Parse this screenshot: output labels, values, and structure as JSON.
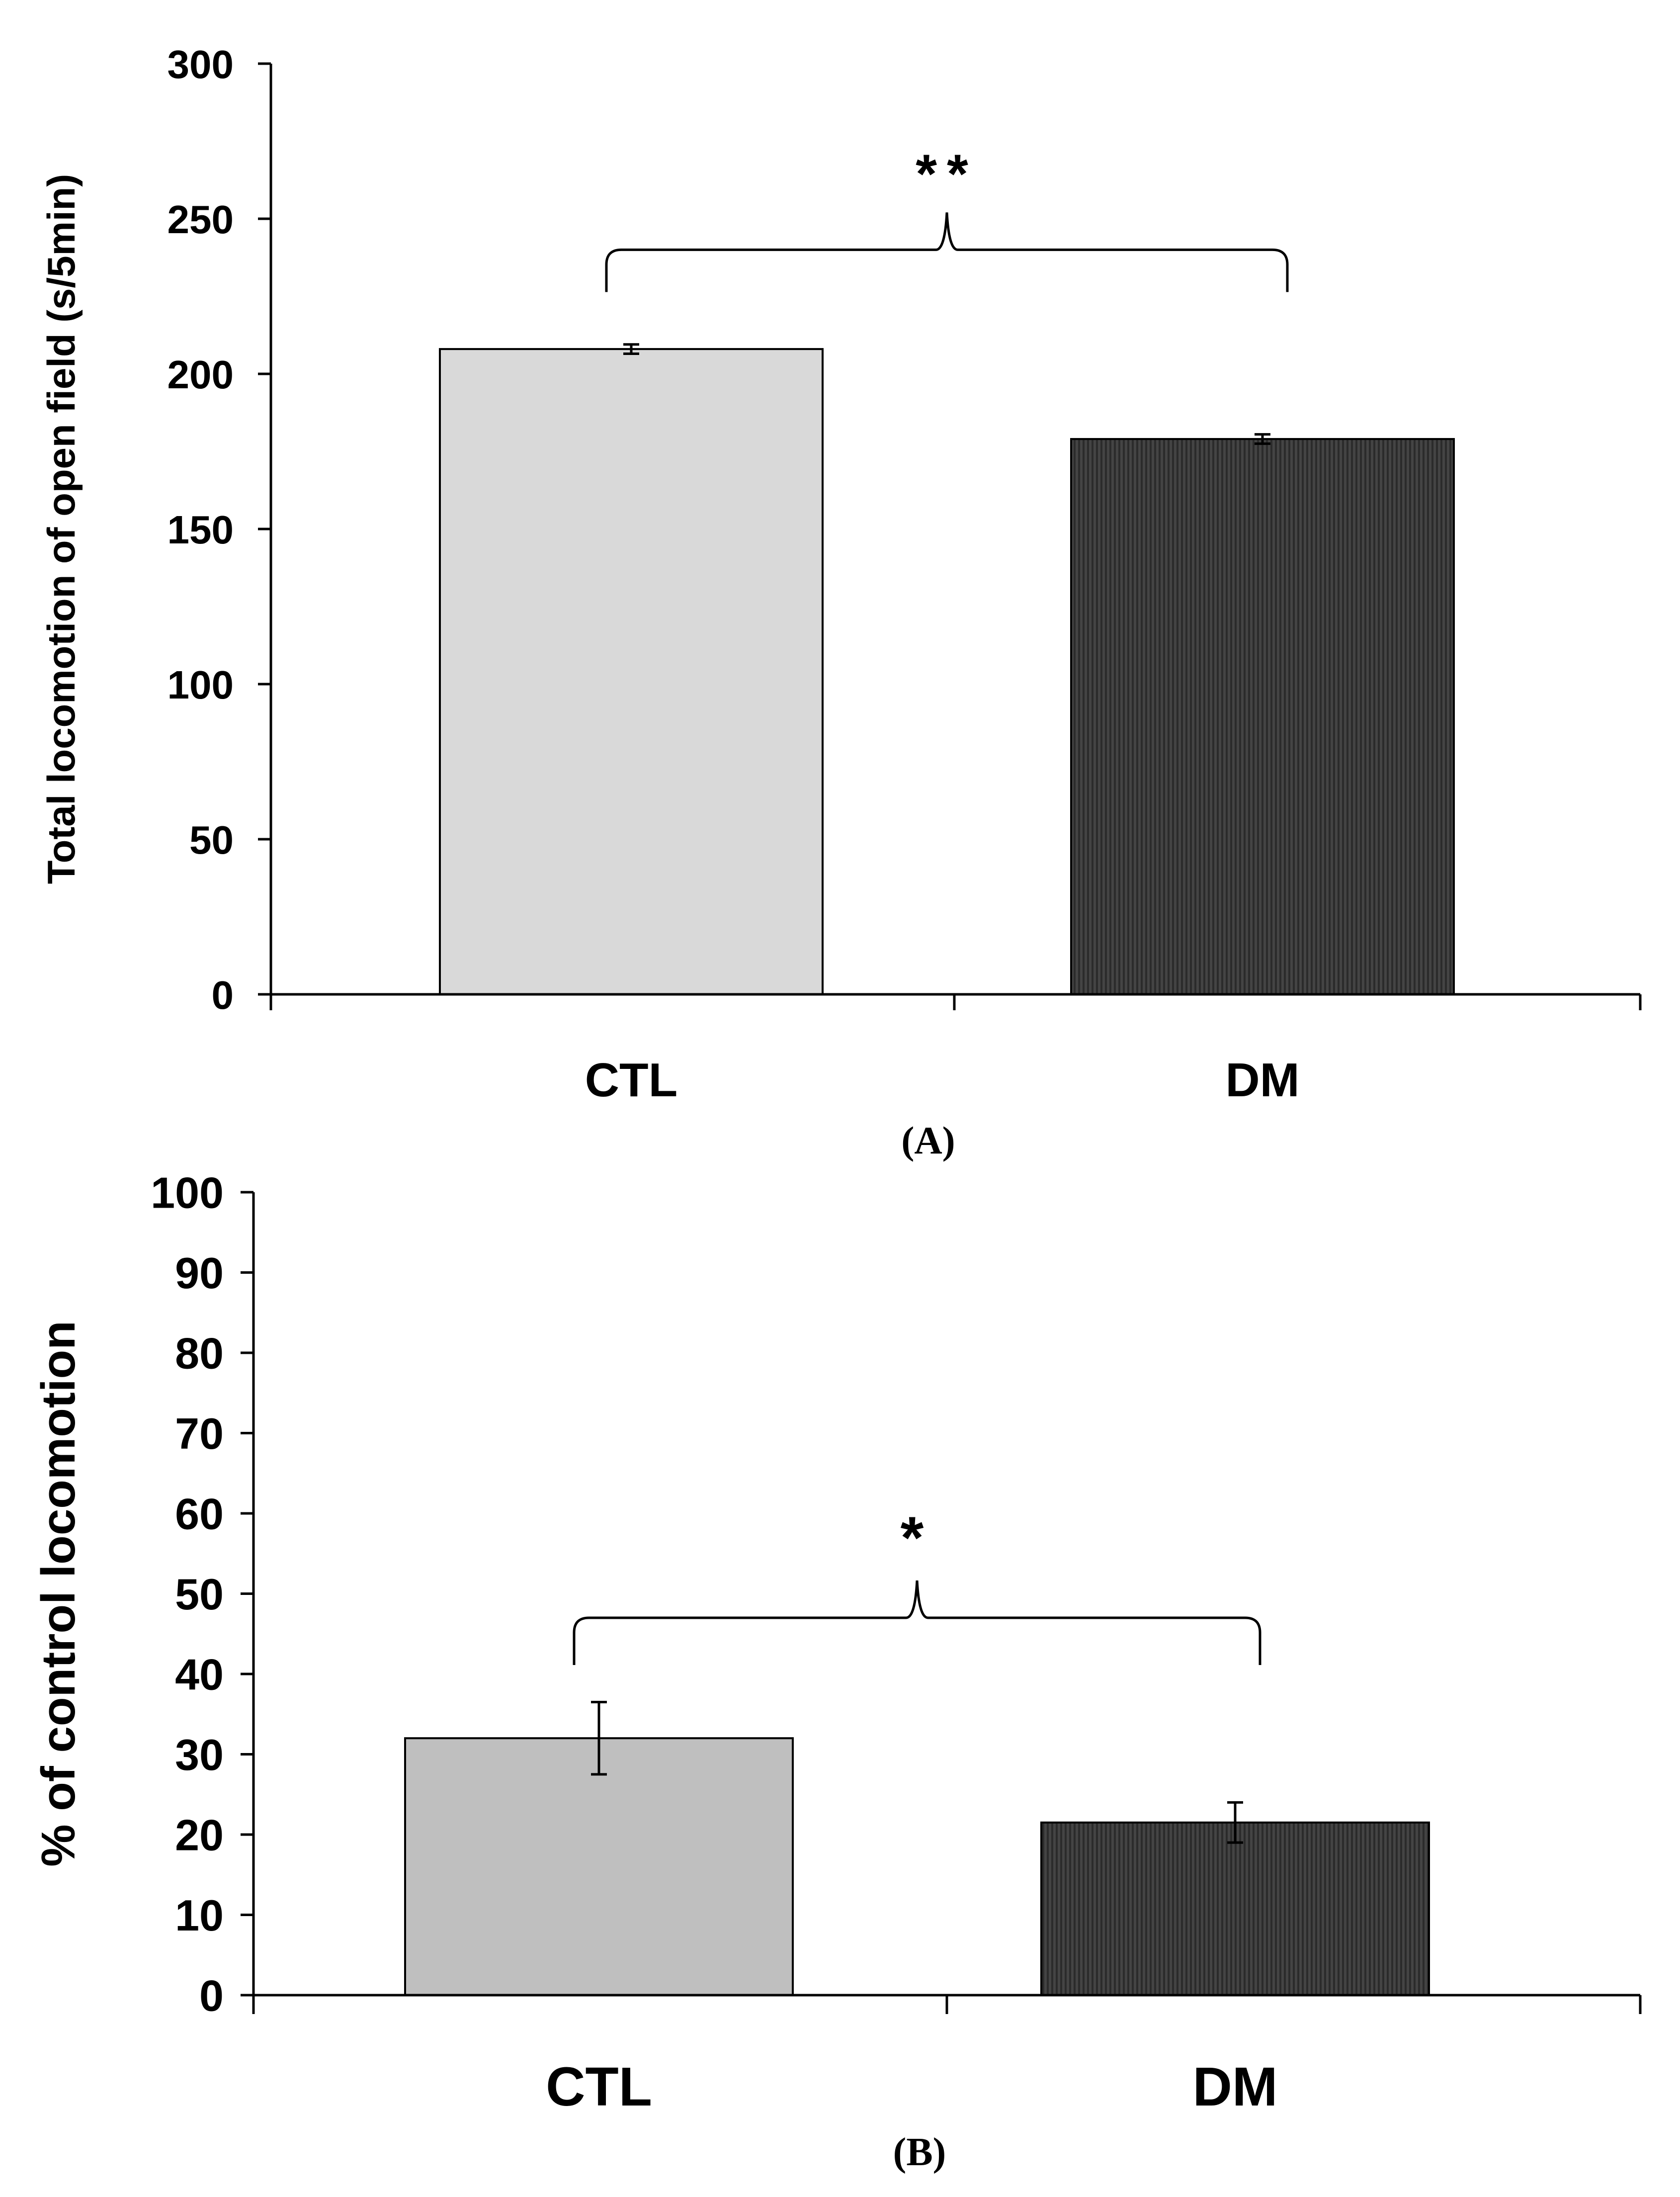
{
  "colors": {
    "axis": "#000000",
    "ctl_bar_A": "#d9d9d9",
    "ctl_bar_B": "#bfbfbf",
    "dm_bar": "#404040",
    "dm_stripe": "#2a2a2a",
    "background": "#ffffff"
  },
  "chart_data": [
    {
      "type": "bar",
      "panel_label": "(A)",
      "title": "",
      "xlabel": "",
      "ylabel": "Total locomotion of open field  (s/5min)",
      "categories": [
        "CTL",
        "DM"
      ],
      "values": [
        208,
        179
      ],
      "errors": [
        1.5,
        1.5
      ],
      "ylim": [
        0,
        300
      ],
      "yticks": [
        0,
        50,
        100,
        150,
        200,
        250,
        300
      ],
      "ytick_labels": [
        "0",
        "50",
        "100",
        "150",
        "200",
        "250",
        "300"
      ],
      "significance": {
        "label": "**",
        "between": [
          "CTL",
          "DM"
        ],
        "bracket_level": 240
      },
      "grid": false,
      "legend": "none"
    },
    {
      "type": "bar",
      "panel_label": "(B)",
      "title": "",
      "xlabel": "",
      "ylabel": "% of control locomotion",
      "categories": [
        "CTL",
        "DM"
      ],
      "values": [
        32,
        21.5
      ],
      "errors": [
        4.5,
        2.5
      ],
      "ylim": [
        0,
        100
      ],
      "yticks": [
        0,
        10,
        20,
        30,
        40,
        50,
        60,
        70,
        80,
        90,
        100
      ],
      "ytick_labels": [
        "0",
        "10",
        "20",
        "30",
        "40",
        "50",
        "60",
        "70",
        "80",
        "90",
        "100"
      ],
      "significance": {
        "label": "*",
        "between": [
          "CTL",
          "DM"
        ],
        "bracket_level": 47
      },
      "grid": false,
      "legend": "none"
    }
  ]
}
